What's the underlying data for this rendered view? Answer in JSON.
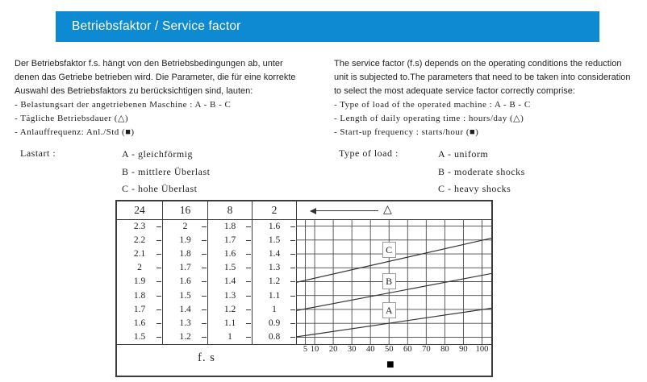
{
  "header": {
    "title": "Betriebsfaktor / Service factor",
    "bar_color": "#0d8ad1"
  },
  "intro_de": {
    "lines": [
      "Der Betriebsfaktor f.s. hängt von den Betriebsbedingungen ab, unter",
      "denen das Getriebe betrieben wird. Die Parameter, die für eine korrekte",
      "Auswahl des Betriebsfaktors zu berücksichtigen sind, lauten:"
    ],
    "bullets": [
      "- Belastungsart der angetriebenen Maschine : A - B - C",
      "- Tägliche Betriebsdauer  (△)",
      "- Anlauffrequenz: Anl./Std  (■)"
    ]
  },
  "intro_en": {
    "lines": [
      "The service factor (f.s) depends on the operating conditions  the reduction",
      "unit is subjected to.The parameters that need to be taken into consideration",
      "to select  the most adequate service factor correctly comprise:"
    ],
    "bullets": [
      "- Type of load of the operated machine : A - B - C",
      "- Length of daily operating time : hours/day  (△)",
      "- Start-up frequency : starts/hour  (■)"
    ]
  },
  "load_de": {
    "label": "Lastart :",
    "items": [
      "A - gleichförmig",
      "B - mittlere Überlast",
      "C - hohe Überlast"
    ]
  },
  "load_en": {
    "label": "Type of load :",
    "items": [
      "A - uniform",
      "B - moderate shocks",
      "C - heavy shocks"
    ]
  },
  "table": {
    "footer_label": "f. s",
    "triangle_symbol": "△",
    "square_symbol": "■",
    "columns": [
      {
        "header": "24",
        "values": [
          "2.3",
          "2.2",
          "2.1",
          "2",
          "1.9",
          "1.8",
          "1.7",
          "1.6",
          "1.5"
        ]
      },
      {
        "header": "16",
        "values": [
          "2",
          "1.9",
          "1.8",
          "1.7",
          "1.6",
          "1.5",
          "1.4",
          "1.3",
          "1.2"
        ]
      },
      {
        "header": "8",
        "values": [
          "1.8",
          "1.7",
          "1.6",
          "1.5",
          "1.4",
          "1.3",
          "1.2",
          "1.1",
          "1"
        ]
      },
      {
        "header": "2",
        "values": [
          "1.6",
          "1.5",
          "1.4",
          "1.3",
          "1.2",
          "1.1",
          "1",
          "0.9",
          "0.8"
        ]
      }
    ]
  },
  "chart_data": {
    "type": "line",
    "x_ticks": [
      5,
      10,
      20,
      30,
      40,
      50,
      60,
      70,
      80,
      90,
      100
    ],
    "x_range": [
      0,
      105
    ],
    "x_axis_symbol": "■",
    "top_axis_symbol": "△",
    "grid": true,
    "row_count": 9,
    "series": [
      {
        "label": "C",
        "meaning": "hohe Überlast / heavy shocks",
        "fs_on_24h_scale": [
          1.89,
          2.21
        ],
        "y_frac": [
          0.506,
          0.152
        ],
        "label_frac": [
          0.476,
          0.245
        ]
      },
      {
        "label": "B",
        "meaning": "mittlere Überlast / moderate shocks",
        "fs_on_24h_scale": [
          1.69,
          1.96
        ],
        "y_frac": [
          0.732,
          0.435
        ],
        "label_frac": [
          0.476,
          0.497
        ]
      },
      {
        "label": "A",
        "meaning": "gleichförmig / uniform",
        "fs_on_24h_scale": [
          1.5,
          1.71
        ],
        "y_frac": [
          0.942,
          0.713
        ],
        "label_frac": [
          0.476,
          0.729
        ]
      }
    ]
  }
}
